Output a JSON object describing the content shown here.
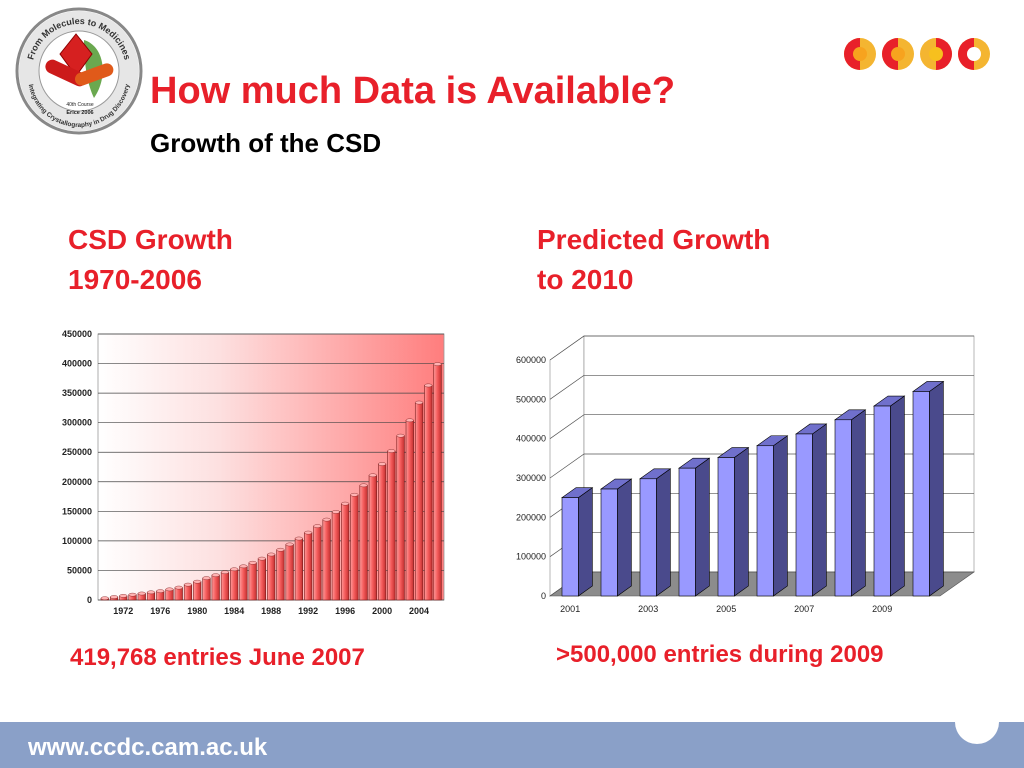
{
  "slide": {
    "title": "How much Data is Available?",
    "subtitle": "Growth of the CSD",
    "logo_text": {
      "ring_top": "From Molecules to Medicines",
      "ring_bottom": "Integrating Crystallography in Drug Discovery",
      "course": "40th Course",
      "place": "Erice 2006"
    },
    "footer_url": "www.ccdc.cam.ac.uk",
    "colors": {
      "accent": "#e8202a",
      "footer": "#8aa0c8",
      "bar3d": "#9999ff",
      "bar3d_side": "#4a4a8c"
    }
  },
  "left": {
    "heading_line1": "CSD Growth",
    "heading_line2": "1970-2006",
    "caption": "419,768 entries June 2007"
  },
  "right": {
    "heading_line1": "Predicted Growth",
    "heading_line2": "to 2010",
    "caption": ">500,000 entries during 2009"
  },
  "chart_data": [
    {
      "type": "bar",
      "title": "",
      "xlabel": "",
      "ylabel": "",
      "ylim": [
        0,
        450000
      ],
      "yticks": [
        0,
        50000,
        100000,
        150000,
        200000,
        250000,
        300000,
        350000,
        400000,
        450000
      ],
      "xtick_labels": [
        "1972",
        "1976",
        "1980",
        "1984",
        "1988",
        "1992",
        "1996",
        "2000",
        "2004"
      ],
      "categories": [
        "1970",
        "1971",
        "1972",
        "1973",
        "1974",
        "1975",
        "1976",
        "1977",
        "1978",
        "1979",
        "1980",
        "1981",
        "1982",
        "1983",
        "1984",
        "1985",
        "1986",
        "1987",
        "1988",
        "1989",
        "1990",
        "1991",
        "1992",
        "1993",
        "1994",
        "1995",
        "1996",
        "1997",
        "1998",
        "1999",
        "2000",
        "2001",
        "2002",
        "2003",
        "2004",
        "2005",
        "2006"
      ],
      "values": [
        3000,
        5000,
        7000,
        9000,
        11000,
        13000,
        15000,
        18000,
        21000,
        26000,
        31000,
        37000,
        42000,
        47000,
        52000,
        57000,
        63000,
        70000,
        77000,
        85000,
        94000,
        104000,
        114000,
        125000,
        136000,
        149000,
        163000,
        178000,
        194000,
        211000,
        230000,
        252000,
        278000,
        304000,
        334000,
        363000,
        399000
      ],
      "grid": true,
      "background": "white-to-red gradient"
    },
    {
      "type": "bar",
      "style": "3d",
      "title": "",
      "xlabel": "",
      "ylabel": "",
      "ylim": [
        0,
        600000
      ],
      "yticks": [
        0,
        100000,
        200000,
        300000,
        400000,
        500000,
        600000
      ],
      "xtick_labels": [
        "2001",
        "2003",
        "2005",
        "2007",
        "2009"
      ],
      "categories": [
        "2001",
        "2002",
        "2003",
        "2004",
        "2005",
        "2006",
        "2007",
        "2008",
        "2009",
        "2010"
      ],
      "values": [
        250000,
        272000,
        298000,
        325000,
        352000,
        382000,
        412000,
        448000,
        483000,
        520000
      ],
      "grid": true
    }
  ]
}
